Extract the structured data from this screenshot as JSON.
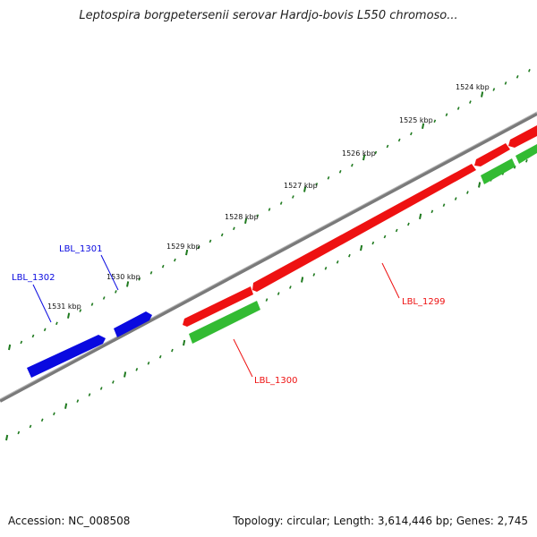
{
  "title": "Leptospira borgpetersenii serovar Hardjo-bovis L550 chromoso...",
  "accession_text": "Accession: NC_008508",
  "summary_text": "Topology: circular; Length: 3,614,446 bp; Genes: 2,745",
  "colors": {
    "backbone": "#7a7a7a",
    "tick": "#1f7a1f",
    "forward_gene": "#ee1111",
    "reverse_gene": "#0a0ae0",
    "cds": "#33bb33"
  },
  "kbp_labels": [
    "1524 kbp",
    "1525 kbp",
    "1526 kbp",
    "1527 kbp",
    "1528 kbp",
    "1529 kbp",
    "1530 kbp",
    "1531 kbp"
  ],
  "gene_labels": [
    {
      "text": "LBL_1299",
      "color": "#ee1111"
    },
    {
      "text": "LBL_1300",
      "color": "#ee1111"
    },
    {
      "text": "LBL_1301",
      "color": "#0a0ae0"
    },
    {
      "text": "LBL_1302",
      "color": "#0a0ae0"
    }
  ]
}
